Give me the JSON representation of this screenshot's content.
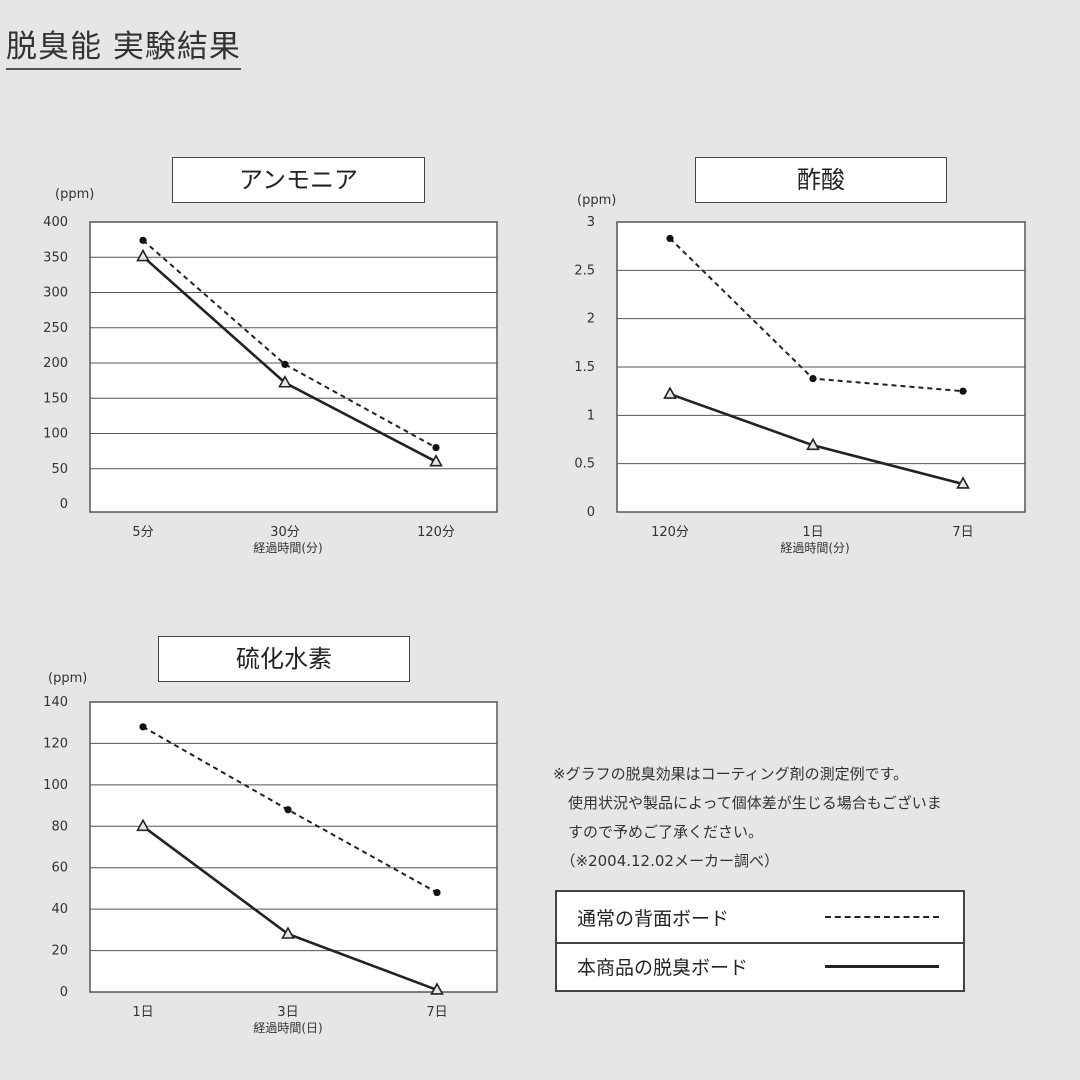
{
  "page_title": "脱臭能 実験結果",
  "note_lines": [
    "※グラフの脱臭効果はコーティング剤の測定例です。",
    "　使用状況や製品によって個体差が生じる場合もございま",
    "　すので予めご了承ください。",
    "　（※2004.12.02メーカー調べ）"
  ],
  "legend": [
    {
      "label": "通常の背面ボード",
      "style": "dashed"
    },
    {
      "label": "本商品の脱臭ボード",
      "style": "solid"
    }
  ],
  "chart_data": [
    {
      "type": "line",
      "title": "アンモニア",
      "unit": "(ppm)",
      "xlabel": "経過時間(分)",
      "categories": [
        "5分",
        "30分",
        "120分"
      ],
      "yticks": [
        "0",
        "50",
        "100",
        "150",
        "200",
        "250",
        "300",
        "350",
        "400"
      ],
      "ylim": [
        0,
        400
      ],
      "grid": true,
      "series": [
        {
          "name": "通常の背面ボード",
          "style": "dashed",
          "marker": "dot",
          "values": [
            374,
            198,
            80
          ]
        },
        {
          "name": "本商品の脱臭ボード",
          "style": "solid",
          "marker": "triangle",
          "values": [
            351,
            172,
            60
          ]
        }
      ]
    },
    {
      "type": "line",
      "title": "酢酸",
      "unit": "(ppm)",
      "xlabel": "経過時間(分)",
      "categories": [
        "120分",
        "1日",
        "7日"
      ],
      "yticks": [
        "0",
        "0.5",
        "1",
        "1.5",
        "2",
        "2.5",
        "3"
      ],
      "ylim": [
        0,
        3
      ],
      "grid": true,
      "series": [
        {
          "name": "通常の背面ボード",
          "style": "dashed",
          "marker": "dot",
          "values": [
            2.83,
            1.38,
            1.25
          ]
        },
        {
          "name": "本商品の脱臭ボード",
          "style": "solid",
          "marker": "triangle",
          "values": [
            1.22,
            0.69,
            0.29
          ]
        }
      ]
    },
    {
      "type": "line",
      "title": "硫化水素",
      "unit": "(ppm)",
      "xlabel": "経過時間(日)",
      "categories": [
        "1日",
        "3日",
        "7日"
      ],
      "yticks": [
        "0",
        "20",
        "40",
        "60",
        "80",
        "100",
        "120",
        "140"
      ],
      "ylim": [
        0,
        140
      ],
      "grid": true,
      "series": [
        {
          "name": "通常の背面ボード",
          "style": "dashed",
          "marker": "dot",
          "values": [
            128,
            88,
            48
          ]
        },
        {
          "name": "本商品の脱臭ボード",
          "style": "solid",
          "marker": "triangle",
          "values": [
            80,
            28,
            1
          ]
        }
      ]
    }
  ]
}
